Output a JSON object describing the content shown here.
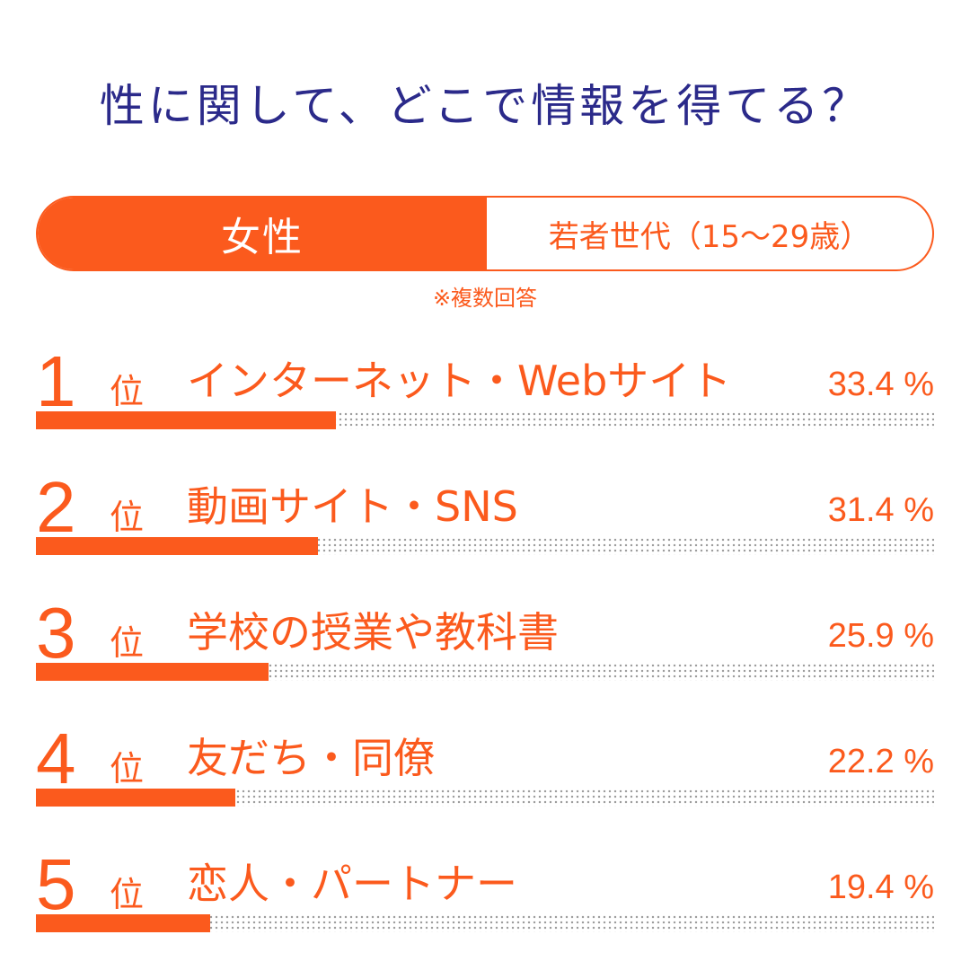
{
  "title": "性に関して、どこで情報を得てる？",
  "toggle": {
    "active": "女性",
    "other": "若者世代（15〜29歳）"
  },
  "note": "※複数回答",
  "accent_color": "#fb5a1d",
  "title_color": "#2b2a8a",
  "rank_unit": "位",
  "chart_data": {
    "type": "bar",
    "orientation": "horizontal",
    "categories": [
      "インターネット・Webサイト",
      "動画サイト・SNS",
      "学校の授業や教科書",
      "友だち・同僚",
      "恋人・パートナー"
    ],
    "ranks": [
      "1",
      "2",
      "3",
      "4",
      "5"
    ],
    "values": [
      33.4,
      31.4,
      25.9,
      22.2,
      19.4
    ],
    "value_labels": [
      "33.4 %",
      "31.4 %",
      "25.9 %",
      "22.2 %",
      "19.4 %"
    ],
    "xlim": [
      0,
      100
    ]
  }
}
